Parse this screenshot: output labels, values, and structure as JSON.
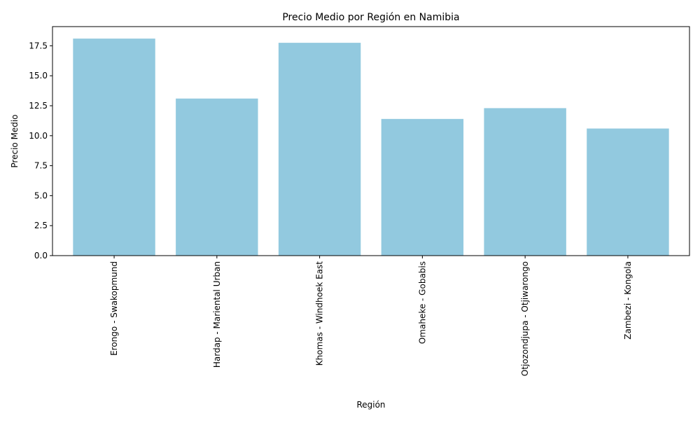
{
  "chart_data": {
    "type": "bar",
    "title": "Precio Medio por Región en Namibia",
    "xlabel": "Región",
    "ylabel": "Precio Medio",
    "categories": [
      "Erongo - Swakopmund",
      "Hardap - Mariental Urban",
      "Khomas - Windhoek East",
      "Omaheke - Gobabis",
      "Otjozondjupa - Otjiwarongo",
      "Zambezi - Kongola"
    ],
    "values": [
      18.1,
      13.1,
      17.75,
      11.4,
      12.3,
      10.6
    ],
    "ylim": [
      0,
      19.1
    ],
    "yticks": [
      "0.0",
      "2.5",
      "5.0",
      "7.5",
      "10.0",
      "12.5",
      "15.0",
      "17.5"
    ],
    "bar_color": "#92c9df",
    "grid": false,
    "legend": "none"
  }
}
